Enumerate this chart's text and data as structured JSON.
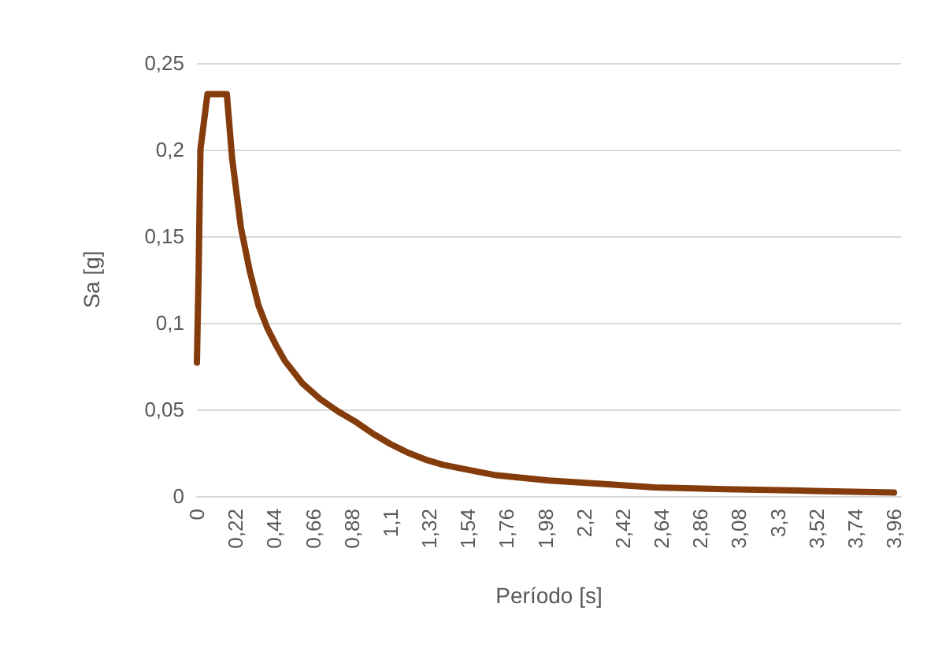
{
  "chart_data": {
    "type": "line",
    "xlabel": "Período [s]",
    "ylabel": "Sa [g]",
    "x": [
      0,
      0.01,
      0.02,
      0.06,
      0.17,
      0.2,
      0.25,
      0.3,
      0.35,
      0.4,
      0.45,
      0.5,
      0.6,
      0.7,
      0.8,
      0.9,
      1.0,
      1.1,
      1.2,
      1.3,
      1.4,
      1.5,
      1.7,
      2.0,
      2.3,
      2.6,
      3.0,
      3.5,
      3.96
    ],
    "series": [
      {
        "color": "#843c0c",
        "values": [
          0.077,
          0.13,
          0.2,
          0.232,
          0.232,
          0.195,
          0.155,
          0.13,
          0.11,
          0.097,
          0.087,
          0.078,
          0.065,
          0.056,
          0.049,
          0.043,
          0.036,
          0.03,
          0.025,
          0.021,
          0.018,
          0.016,
          0.012,
          0.009,
          0.007,
          0.005,
          0.004,
          0.003,
          0.002
        ]
      }
    ],
    "xlim": [
      0,
      4
    ],
    "xticks": [
      0,
      {
        "value": 0.22,
        "label": "0,22"
      },
      {
        "value": 0.44,
        "label": "0,44"
      },
      {
        "value": 0.66,
        "label": "0,66"
      },
      {
        "value": 0.88,
        "label": "0,88"
      },
      {
        "value": 1.1,
        "label": "1,1"
      },
      {
        "value": 1.32,
        "label": "1,32"
      },
      {
        "value": 1.54,
        "label": "1,54"
      },
      {
        "value": 1.76,
        "label": "1,76"
      },
      {
        "value": 1.98,
        "label": "1,98"
      },
      {
        "value": 2.2,
        "label": "2,2"
      },
      {
        "value": 2.42,
        "label": "2,42"
      },
      {
        "value": 2.64,
        "label": "2,64"
      },
      {
        "value": 2.86,
        "label": "2,86"
      },
      {
        "value": 3.08,
        "label": "3,08"
      },
      {
        "value": 3.3,
        "label": "3,3"
      },
      {
        "value": 3.52,
        "label": "3,52"
      },
      {
        "value": 3.74,
        "label": "3,74"
      },
      {
        "value": 3.96,
        "label": "3,96"
      }
    ],
    "ylim": [
      0,
      0.25
    ],
    "yticks": [
      0,
      {
        "value": 0.05,
        "label": "0,05"
      },
      {
        "value": 0.1,
        "label": "0,1"
      },
      {
        "value": 0.15,
        "label": "0,15"
      },
      {
        "value": 0.2,
        "label": "0,2"
      },
      {
        "value": 0.25,
        "label": "0,25"
      }
    ],
    "grid": "y",
    "marker": "none",
    "line_style": "solid"
  }
}
